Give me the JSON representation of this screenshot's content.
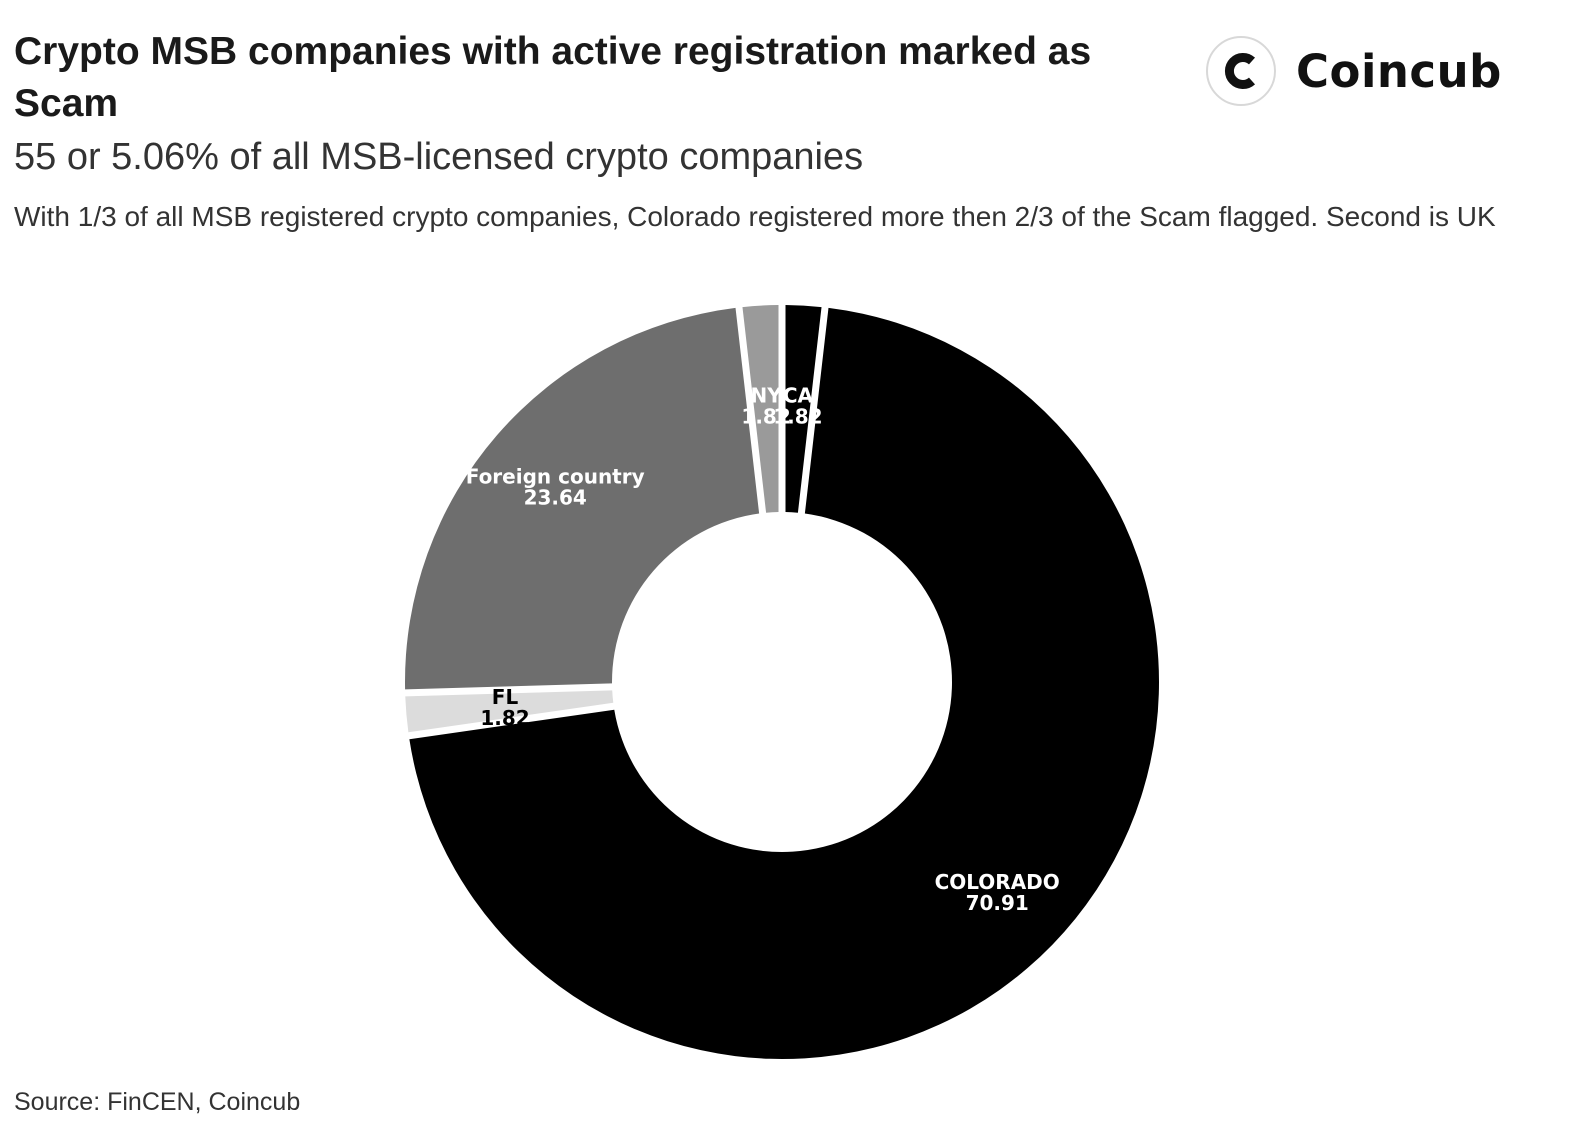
{
  "header": {
    "title": "Crypto MSB companies with active registration marked as Scam",
    "subtitle": "55 or 5.06% of all MSB-licensed crypto companies",
    "description": "With 1/3 of all MSB registered crypto companies, Colorado registered more then 2/3 of the Scam flagged. Second is UK"
  },
  "logo": {
    "text": "Coincub",
    "icon": "coincub-logo-icon"
  },
  "chart_data": {
    "type": "pie",
    "variant": "donut",
    "slices": [
      {
        "label": "CA",
        "value": 1.82,
        "color": "#000000",
        "label_color": "#ffffff"
      },
      {
        "label": "COLORADO",
        "value": 70.91,
        "color": "#000000",
        "label_color": "#ffffff"
      },
      {
        "label": "FL",
        "value": 1.82,
        "color": "#dcdcdc",
        "label_color": "#000000"
      },
      {
        "label": "Foreign country",
        "value": 23.64,
        "color": "#6e6e6e",
        "label_color": "#ffffff"
      },
      {
        "label": "NY",
        "value": 1.82,
        "color": "#9a9a9a",
        "label_color": "#ffffff"
      }
    ],
    "legend": "none"
  },
  "footer": {
    "source": "Source: FinCEN, Coincub"
  }
}
